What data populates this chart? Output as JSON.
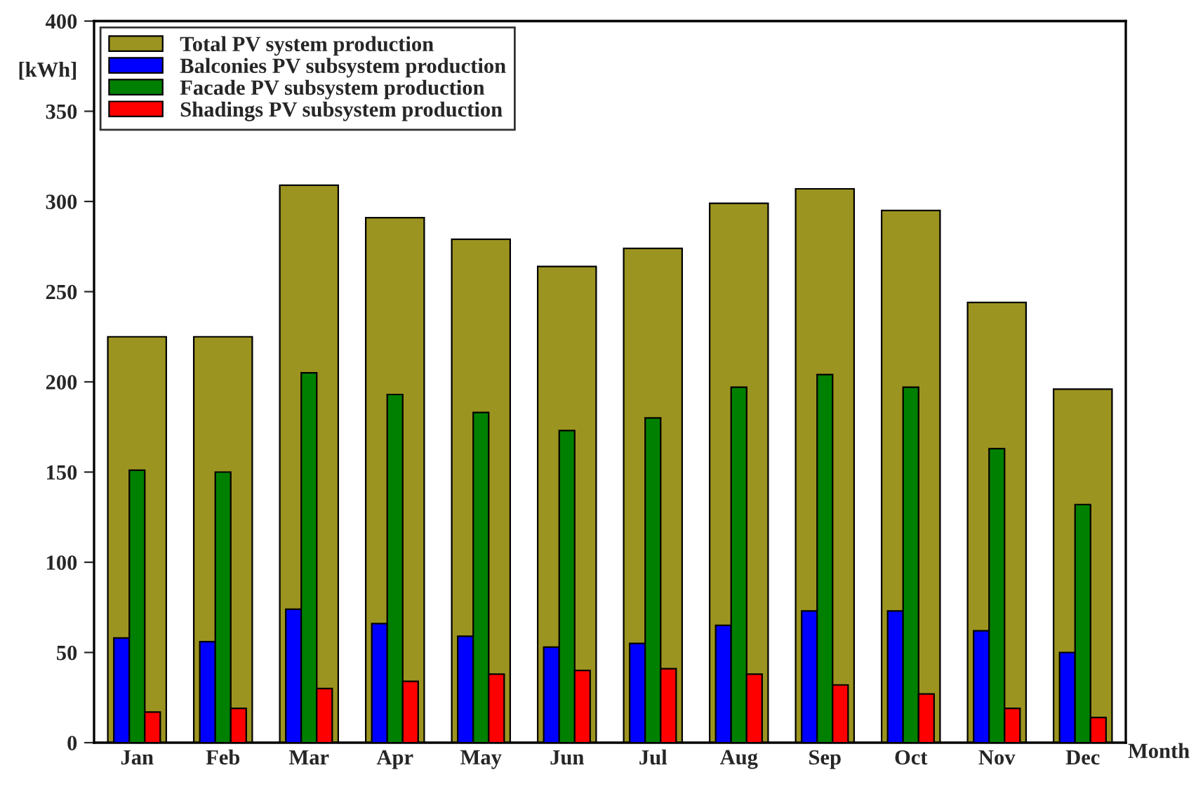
{
  "chart_data": {
    "type": "bar",
    "ylabel": "[kWh]",
    "xlabel": "Month",
    "categories": [
      "Jan",
      "Feb",
      "Mar",
      "Apr",
      "May",
      "Jun",
      "Jul",
      "Aug",
      "Sep",
      "Oct",
      "Nov",
      "Dec"
    ],
    "series": [
      {
        "name": "Total PV system production",
        "color": "#9c9420",
        "values": [
          225,
          225,
          309,
          291,
          279,
          264,
          274,
          299,
          307,
          295,
          244,
          196
        ]
      },
      {
        "name": "Balconies PV subsystem production",
        "color": "#0000ff",
        "values": [
          58,
          56,
          74,
          66,
          59,
          53,
          55,
          65,
          73,
          73,
          62,
          50
        ]
      },
      {
        "name": "Facade PV subsystem production",
        "color": "#008000",
        "values": [
          151,
          150,
          205,
          193,
          183,
          173,
          180,
          197,
          204,
          197,
          163,
          132
        ]
      },
      {
        "name": "Shadings PV subsystem production",
        "color": "#ff0000",
        "values": [
          17,
          19,
          30,
          34,
          38,
          40,
          41,
          38,
          32,
          27,
          19,
          14
        ]
      }
    ],
    "ylim": [
      0,
      400
    ],
    "yticks": [
      0,
      50,
      100,
      150,
      200,
      250,
      300,
      350,
      400
    ],
    "grid": false,
    "legend": "top left"
  }
}
